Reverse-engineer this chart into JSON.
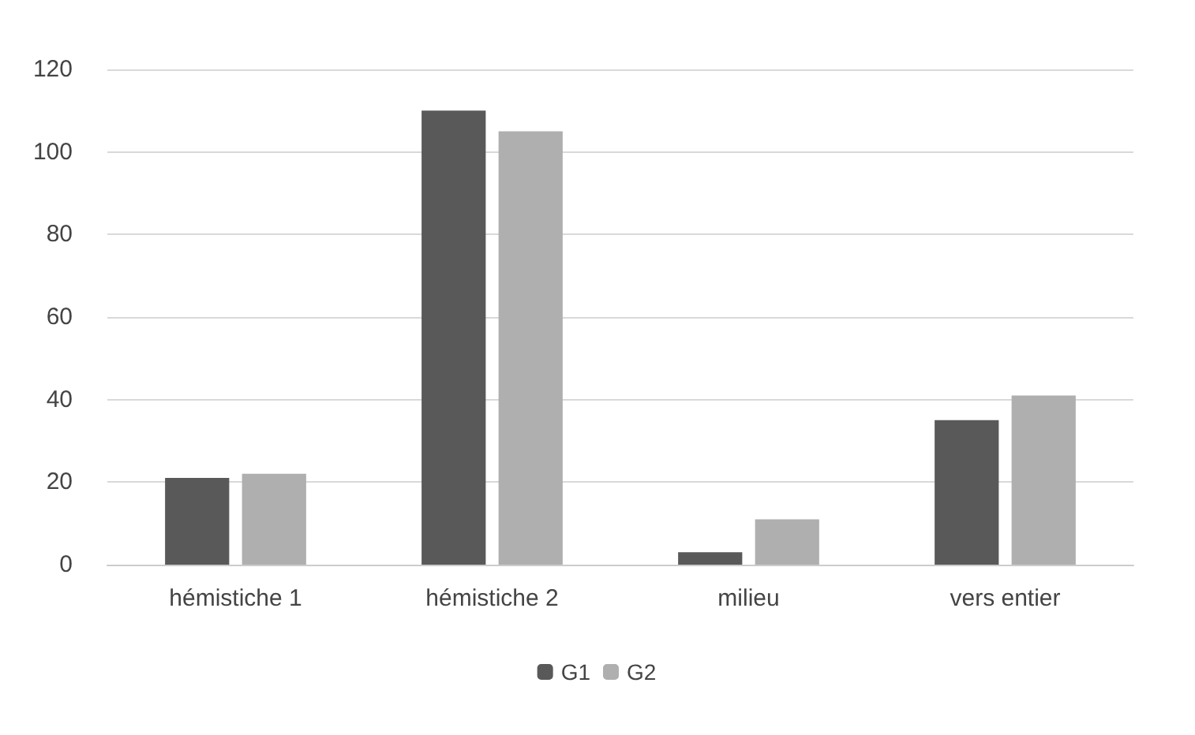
{
  "chart_data": {
    "type": "bar",
    "categories": [
      "hémistiche 1",
      "hémistiche 2",
      "milieu",
      "vers entier"
    ],
    "series": [
      {
        "name": "G1",
        "color": "#595959",
        "values": [
          21,
          110,
          3,
          35
        ]
      },
      {
        "name": "G2",
        "color": "#afafaf",
        "values": [
          22,
          105,
          11,
          41
        ]
      }
    ],
    "ylim": [
      0,
      120
    ],
    "yticks": [
      0,
      20,
      40,
      60,
      80,
      100,
      120
    ],
    "grid": "y",
    "legend": "bottom"
  }
}
